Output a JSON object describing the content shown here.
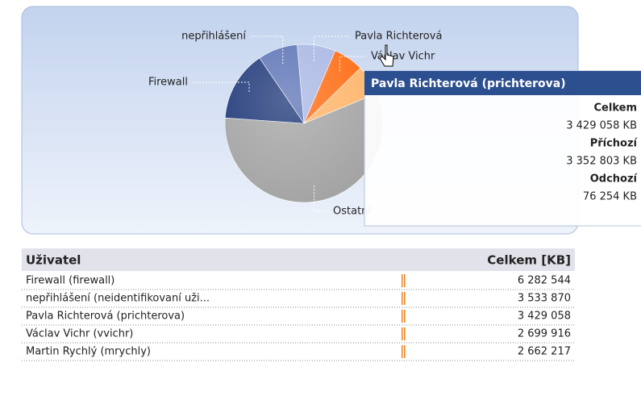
{
  "pie": {
    "type": "pie",
    "slices": [
      {
        "label": "Pavla Richterová",
        "value": 3429058,
        "color": "#a9b6e4"
      },
      {
        "label": "Václav Vichr",
        "value": 2699916,
        "color": "#ff6a10"
      },
      {
        "label": null,
        "value": 2662217,
        "color": "#ffb469"
      },
      {
        "label": "Ostatní",
        "value": 25000000,
        "color": "#a3a3a3"
      },
      {
        "label": "Firewall",
        "value": 6282544,
        "color": "#1c3577"
      },
      {
        "label": "nepřihlášení",
        "value": 3533870,
        "color": "#5b72b5"
      }
    ]
  },
  "tooltip": {
    "title": "Pavla Richterová (prichterova)",
    "items": [
      [
        "Celkem",
        "3 429 058 KB"
      ],
      [
        "Příchozí",
        "3 352 803 KB"
      ],
      [
        "Odchozí",
        "76 254 KB"
      ]
    ]
  },
  "table": {
    "header": [
      "Uživatel",
      "Celkem [KB]"
    ],
    "rows": [
      [
        "Firewall (firewall)",
        "6 282 544"
      ],
      [
        "nepřihlášení (neidentifikovaní uži...",
        "3 533 870"
      ],
      [
        "Pavla Richterová (prichterova)",
        "3 429 058"
      ],
      [
        "Václav Vichr (vvichr)",
        "2 699 916"
      ],
      [
        "Martin Rychlý (mrychly)",
        "2 662 217"
      ]
    ]
  }
}
